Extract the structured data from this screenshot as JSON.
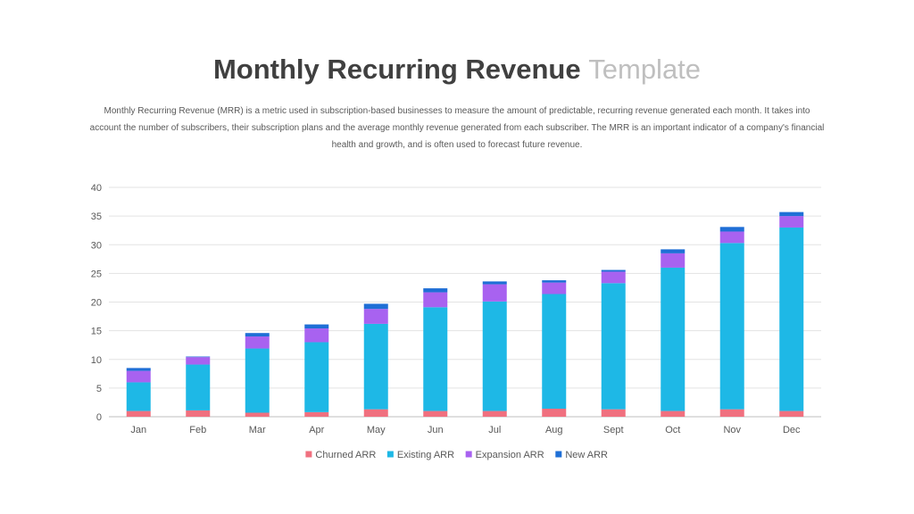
{
  "header": {
    "title_bold": "Monthly Recurring Revenue",
    "title_light": "Template",
    "description": "Monthly Recurring Revenue (MRR) is a metric used in subscription-based businesses to measure the amount of predictable, recurring revenue generated each month. It takes into account the number of subscribers, their subscription plans and the average monthly revenue generated from each subscriber. The MRR is an important indicator of a company's financial health and growth, and is often used to forecast future revenue."
  },
  "chart_data": {
    "type": "bar",
    "stacked": true,
    "title": "",
    "xlabel": "",
    "ylabel": "",
    "ylim": [
      0,
      40
    ],
    "yticks": [
      0,
      5,
      10,
      15,
      20,
      25,
      30,
      35,
      40
    ],
    "grid": true,
    "legend_position": "bottom",
    "categories": [
      "Jan",
      "Feb",
      "Mar",
      "Apr",
      "May",
      "Jun",
      "Jul",
      "Aug",
      "Sept",
      "Oct",
      "Nov",
      "Dec"
    ],
    "series": [
      {
        "name": "Churned ARR",
        "color": "#f0707f",
        "values": [
          1,
          1.1,
          0.7,
          0.8,
          1.3,
          1,
          1,
          1.4,
          1.3,
          1,
          1.3,
          1
        ]
      },
      {
        "name": "Existing ARR",
        "color": "#1eb8e6",
        "values": [
          5,
          8,
          11.2,
          12.2,
          14.9,
          18.1,
          19.1,
          20,
          22,
          25,
          29,
          32
        ]
      },
      {
        "name": "Expansion ARR",
        "color": "#a862f0",
        "values": [
          2,
          1.3,
          2.1,
          2.4,
          2.6,
          2.6,
          3,
          2,
          2,
          2.5,
          2,
          2
        ]
      },
      {
        "name": "New ARR",
        "color": "#1f6fd6",
        "values": [
          0.5,
          0.1,
          0.6,
          0.7,
          0.9,
          0.7,
          0.5,
          0.4,
          0.3,
          0.7,
          0.8,
          0.7
        ]
      }
    ]
  }
}
